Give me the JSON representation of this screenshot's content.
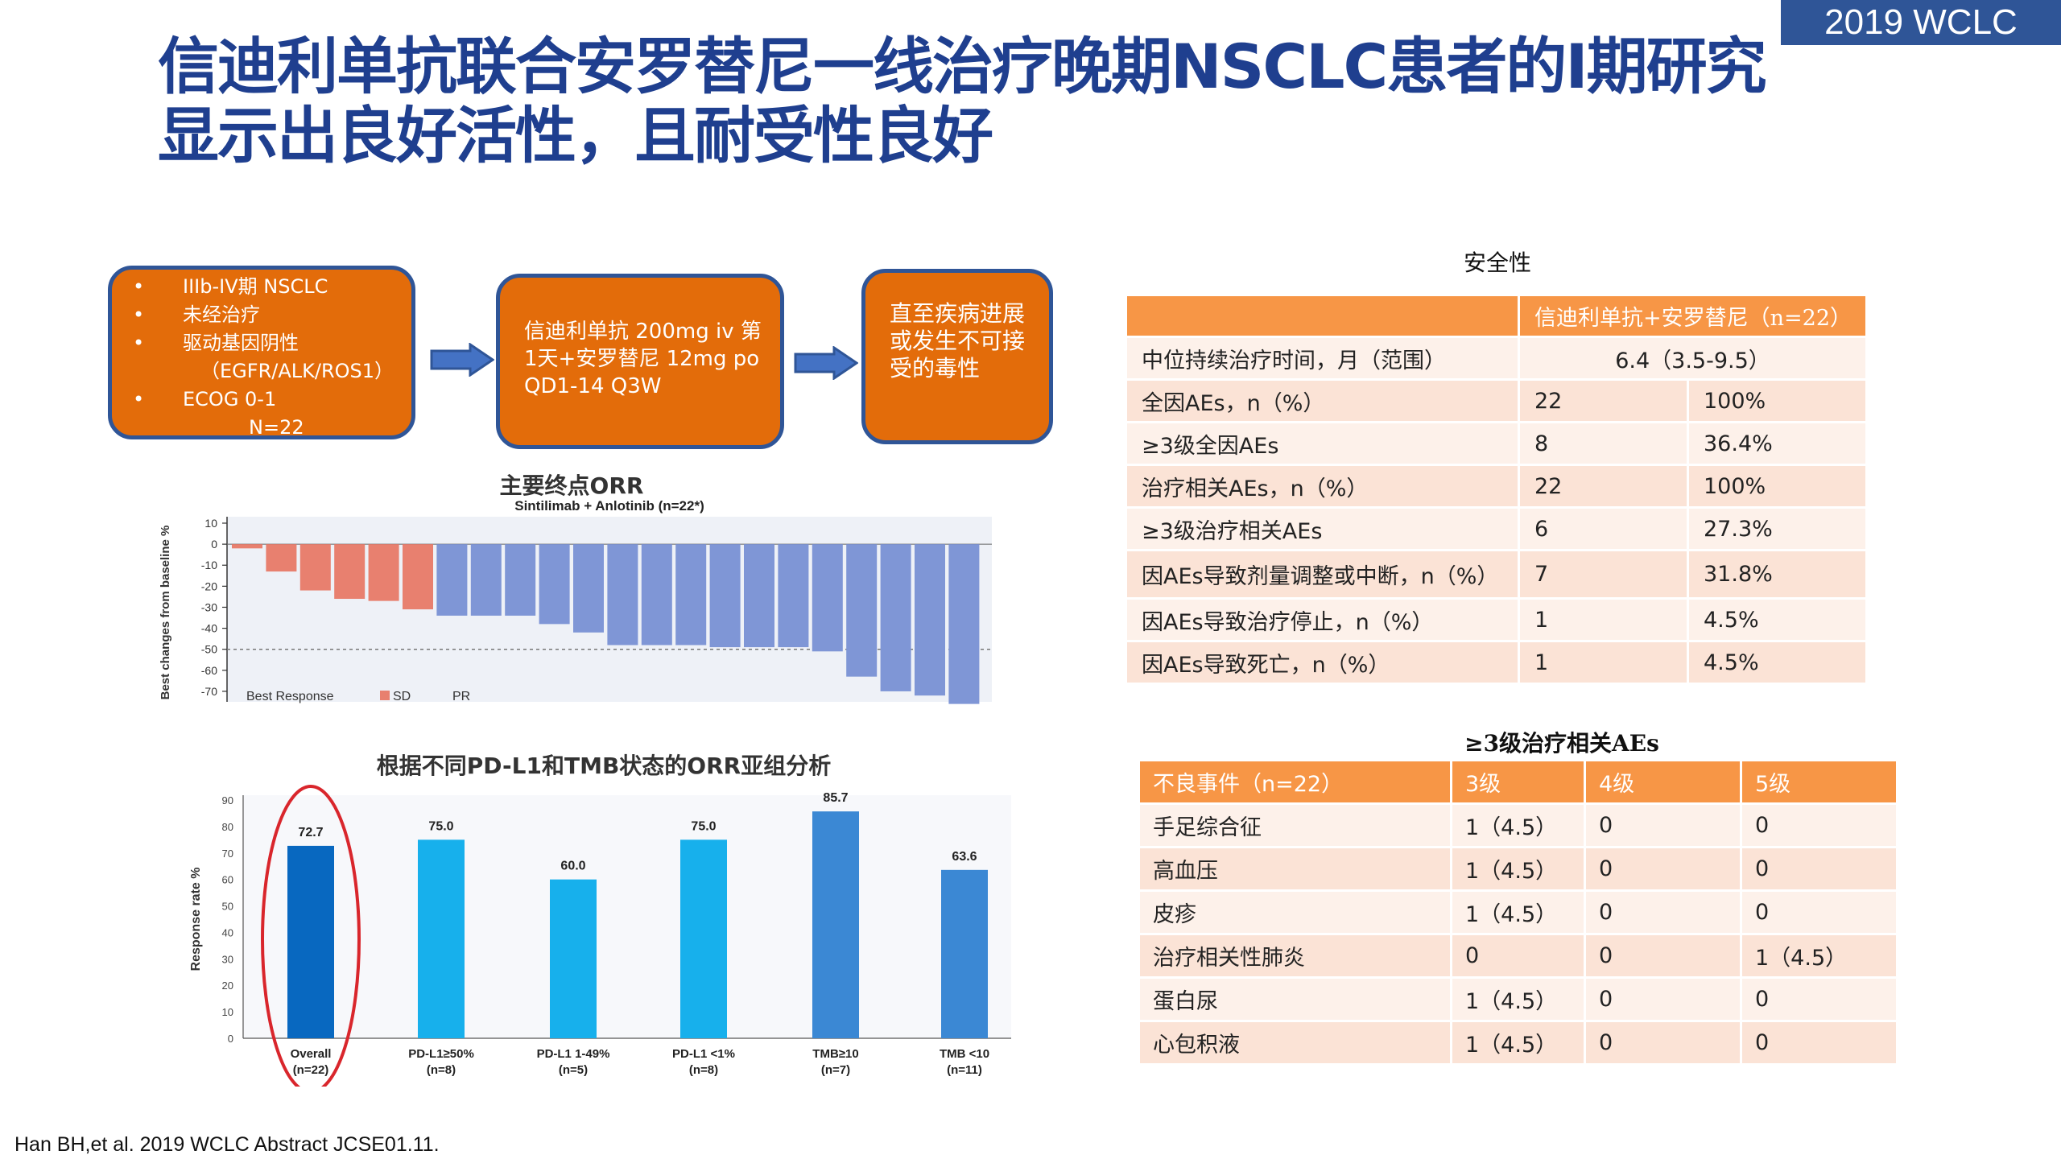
{
  "tag": "2019 WCLC",
  "title_line1": "信迪利单抗联合安罗替尼一线治疗晚期NSCLC患者的I期研究",
  "title_line2": "显示出良好活性，且耐受性良好",
  "flow": {
    "box1_items": [
      {
        "bullet": "•",
        "text": "IIIb-IV期 NSCLC"
      },
      {
        "bullet": "•",
        "text": "未经治疗"
      },
      {
        "bullet": "•",
        "text": "驱动基因阴性"
      },
      {
        "bullet": "",
        "text": "（EGFR/ALK/ROS1）"
      },
      {
        "bullet": "•",
        "text": "ECOG 0-1"
      },
      {
        "bullet": "",
        "text": "N=22"
      }
    ],
    "box2_text": "信迪利单抗 200mg iv 第1天+安罗替尼 12mg po QD1-14 Q3W",
    "box3_text": "直至疾病进展或发生不可接受的毒性"
  },
  "waterfall_caption": "主要终点ORR",
  "subgroup_caption": "根据不同PD-L1和TMB状态的ORR亚组分析",
  "chart_data": [
    {
      "type": "bar",
      "title": "Sintilimab + Anlotinib (n=22*)",
      "ylabel": "Best changes from baseline %",
      "ylim": [
        -75,
        10
      ],
      "yticks": [
        10,
        0,
        -10,
        -20,
        -30,
        -40,
        -50,
        -60,
        -70
      ],
      "reference_line": -50,
      "legend_title": "Best Response",
      "legend": [
        {
          "name": "SD",
          "color": "#e8806f"
        },
        {
          "name": "PR",
          "color": "#7f96d6"
        }
      ],
      "values": [
        -2,
        -13,
        -22,
        -26,
        -27,
        -31,
        -34,
        -34,
        -34,
        -38,
        -42,
        -48,
        -48,
        -48,
        -49,
        -49,
        -49,
        -51,
        -63,
        -70,
        -72,
        -76
      ],
      "response": [
        "SD",
        "SD",
        "SD",
        "SD",
        "SD",
        "SD",
        "PR",
        "PR",
        "PR",
        "PR",
        "PR",
        "PR",
        "PR",
        "PR",
        "PR",
        "PR",
        "PR",
        "PR",
        "PR",
        "PR",
        "PR",
        "PR"
      ]
    },
    {
      "type": "bar",
      "ylabel": "Response rate %",
      "ylim": [
        0,
        90
      ],
      "yticks": [
        0,
        10,
        20,
        30,
        40,
        50,
        60,
        70,
        80,
        90
      ],
      "categories": [
        {
          "label": "Overall",
          "n": "(n=22)",
          "value": 72.7,
          "label_value": "72.7",
          "color": "#0868c0"
        },
        {
          "label": "PD-L1≥50%",
          "n": "(n=8)",
          "value": 75.0,
          "label_value": "75.0",
          "color": "#17b0ec"
        },
        {
          "label": "PD-L1 1-49%",
          "n": "(n=5)",
          "value": 60.0,
          "label_value": "60.0",
          "color": "#17b0ec"
        },
        {
          "label": "PD-L1 <1%",
          "n": "(n=8)",
          "value": 75.0,
          "label_value": "75.0",
          "color": "#17b0ec"
        },
        {
          "label": "TMB≥10",
          "n": "(n=7)",
          "value": 85.7,
          "label_value": "85.7",
          "color": "#3b88d4"
        },
        {
          "label": "TMB <10",
          "n": "(n=11)",
          "value": 63.6,
          "label_value": "63.6",
          "color": "#3b88d4"
        }
      ]
    }
  ],
  "safety": {
    "caption": "安全性",
    "header": "信迪利单抗+安罗替尼（n=22）",
    "duration_label": "中位持续治疗时间，月（范围）",
    "duration_value": "6.4（3.5-9.5）",
    "rows": [
      {
        "label": "全因AEs，n（%）",
        "n": "22",
        "pct": "100%"
      },
      {
        "label": "≥3级全因AEs",
        "n": "8",
        "pct": "36.4%"
      },
      {
        "label": "治疗相关AEs，n（%）",
        "n": "22",
        "pct": "100%"
      },
      {
        "label": "≥3级治疗相关AEs",
        "n": "6",
        "pct": "27.3%"
      },
      {
        "label": "因AEs导致剂量调整或中断，n（%）",
        "n": "7",
        "pct": "31.8%"
      },
      {
        "label": "因AEs导致治疗停止，n（%）",
        "n": "1",
        "pct": "4.5%"
      },
      {
        "label": "因AEs导致死亡，n（%）",
        "n": "1",
        "pct": "4.5%"
      }
    ]
  },
  "ae_table": {
    "caption": "≥3级治疗相关AEs",
    "headers": [
      "不良事件（n=22）",
      "3级",
      "4级",
      "5级"
    ],
    "rows": [
      [
        "手足综合征",
        "1（4.5）",
        "0",
        "0"
      ],
      [
        "高血压",
        "1（4.5）",
        "0",
        "0"
      ],
      [
        "皮疹",
        "1（4.5）",
        "0",
        "0"
      ],
      [
        "治疗相关性肺炎",
        "0",
        "0",
        "1（4.5）"
      ],
      [
        "蛋白尿",
        "1（4.5）",
        "0",
        "0"
      ],
      [
        "心包积液",
        "1（4.5）",
        "0",
        "0"
      ]
    ]
  },
  "footnote": "Han BH,et al. 2019 WCLC Abstract JCSE01.11.",
  "colors": {
    "title": "#1f3f8f",
    "flow_box": "#e36c0a",
    "flow_border": "#2f5597",
    "table_header": "#f79646",
    "highlight_ellipse": "#d9262c"
  }
}
